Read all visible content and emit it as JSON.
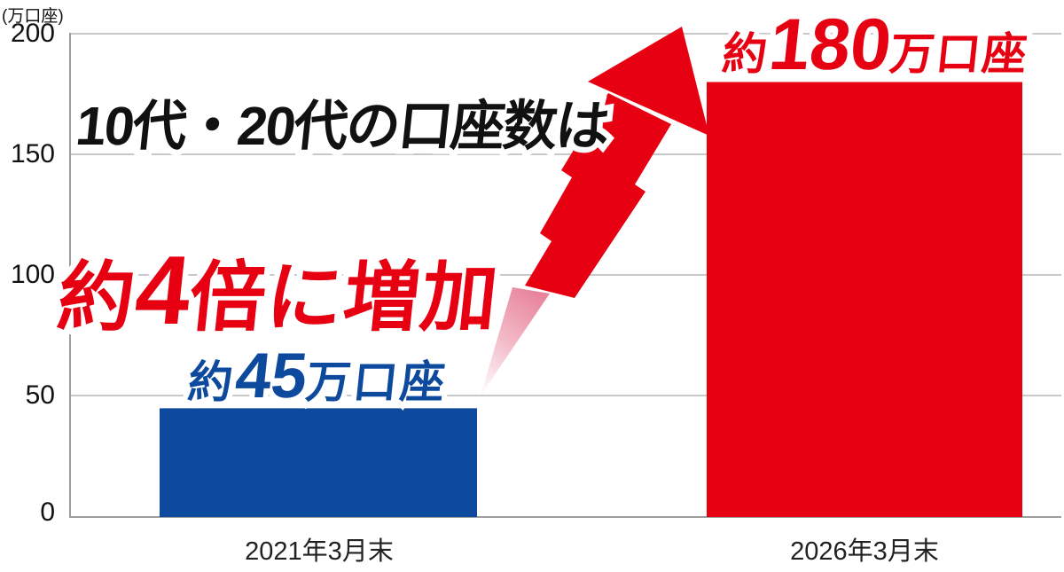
{
  "chart_data": {
    "type": "bar",
    "title_line1": "10代・20代の口座数は",
    "title_line2": {
      "prefix": "約",
      "number": "4",
      "suffix": "倍に増加"
    },
    "unit_label": "(万口座)",
    "categories": [
      "2021年3月末",
      "2026年3月末"
    ],
    "values": [
      45,
      180
    ],
    "value_labels": [
      {
        "prefix": "約",
        "number": "45",
        "suffix": "万口座"
      },
      {
        "prefix": "約",
        "number": "180",
        "suffix": "万口座"
      }
    ],
    "y_ticks": [
      200,
      150,
      100,
      50,
      0
    ],
    "ylim": [
      0,
      200
    ],
    "grid": true,
    "legend": false,
    "annotations": [
      "growth-arrow"
    ],
    "colors": {
      "series": [
        "#0d4a9e",
        "#e60012"
      ],
      "accent_red": "#e60012",
      "accent_blue": "#0d4a9e",
      "headline_black": "#111111",
      "gridline": "#b5b5b5",
      "axis": "#9e9e9e",
      "arrow_tail_top": "#e8849b",
      "arrow_tail_bottom": "#fdf4f6"
    }
  }
}
